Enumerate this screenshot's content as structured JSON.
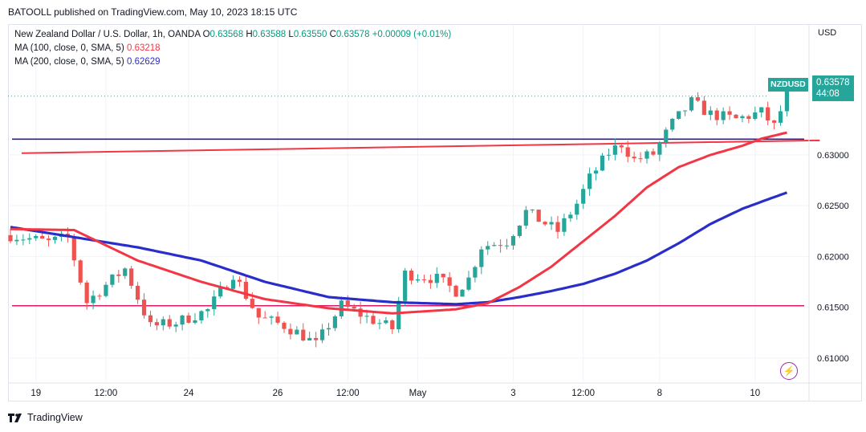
{
  "header": {
    "publisher": "BATOOLL published on TradingView.com, May 10, 2023 18:15 UTC"
  },
  "legend": {
    "symbol": "New Zealand Dollar / U.S. Dollar, 1h, OANDA",
    "open_label": "O",
    "open": "0.63568",
    "high_label": "H",
    "high": "0.63588",
    "low_label": "L",
    "low": "0.63550",
    "close_label": "C",
    "close": "0.63578",
    "change": "+0.00009 (+0.01%)",
    "ma100_label": "MA (100, close, 0, SMA, 5)",
    "ma100_value": "0.63218",
    "ma200_label": "MA (200, close, 0, SMA, 5)",
    "ma200_value": "0.62629"
  },
  "axis": {
    "currency": "USD"
  },
  "price_tag": {
    "symbol": "NZDUSD",
    "price": "0.63578",
    "countdown": "44:08"
  },
  "footer": {
    "brand": "TradingView"
  },
  "colors": {
    "up": "#26a69a",
    "down": "#ef5350",
    "ma100": "#f23645",
    "ma200": "#2a2ec9",
    "hline": "#d81b60",
    "resistance": "#311b92"
  },
  "chart_data": {
    "type": "candlestick",
    "ylim": [
      0.6077,
      0.6428
    ],
    "yticks": [
      0.61,
      0.615,
      0.62,
      0.625,
      0.63
    ],
    "ytick_labels": [
      "0.61000",
      "0.61500",
      "0.62000",
      "0.62500",
      "0.63000"
    ],
    "xticks": [
      {
        "i": 4,
        "label": "19"
      },
      {
        "i": 15,
        "label": "12:00"
      },
      {
        "i": 28,
        "label": "24"
      },
      {
        "i": 42,
        "label": "26"
      },
      {
        "i": 53,
        "label": "12:00"
      },
      {
        "i": 64,
        "label": "May"
      },
      {
        "i": 79,
        "label": "3"
      },
      {
        "i": 90,
        "label": "12:00"
      },
      {
        "i": 102,
        "label": "8"
      },
      {
        "i": 117,
        "label": "10"
      }
    ],
    "candle_count": 123,
    "close_path": [
      [
        0,
        0.6221
      ],
      [
        6,
        0.6214
      ],
      [
        9,
        0.6219
      ],
      [
        12,
        0.6155
      ],
      [
        15,
        0.6172
      ],
      [
        18,
        0.6188
      ],
      [
        22,
        0.6131
      ],
      [
        26,
        0.6135
      ],
      [
        31,
        0.6147
      ],
      [
        35,
        0.6183
      ],
      [
        39,
        0.614
      ],
      [
        43,
        0.6132
      ],
      [
        46,
        0.6122
      ],
      [
        48,
        0.6113
      ],
      [
        52,
        0.6152
      ],
      [
        56,
        0.614
      ],
      [
        60,
        0.6129
      ],
      [
        62,
        0.6183
      ],
      [
        67,
        0.6178
      ],
      [
        70,
        0.6166
      ],
      [
        72,
        0.6178
      ],
      [
        74,
        0.621
      ],
      [
        78,
        0.6215
      ],
      [
        81,
        0.6244
      ],
      [
        86,
        0.6225
      ],
      [
        89,
        0.6252
      ],
      [
        91,
        0.6277
      ],
      [
        94,
        0.6302
      ],
      [
        96,
        0.6311
      ],
      [
        98,
        0.6295
      ],
      [
        101,
        0.6301
      ],
      [
        104,
        0.6331
      ],
      [
        107,
        0.6352
      ],
      [
        110,
        0.634
      ],
      [
        114,
        0.6335
      ],
      [
        118,
        0.6342
      ],
      [
        120,
        0.6328
      ],
      [
        122,
        0.6358
      ]
    ],
    "ma100": [
      [
        0,
        0.6227
      ],
      [
        10,
        0.6226
      ],
      [
        20,
        0.6196
      ],
      [
        30,
        0.6175
      ],
      [
        40,
        0.6158
      ],
      [
        50,
        0.6149
      ],
      [
        60,
        0.6144
      ],
      [
        70,
        0.6148
      ],
      [
        75,
        0.6154
      ],
      [
        80,
        0.617
      ],
      [
        85,
        0.619
      ],
      [
        90,
        0.6215
      ],
      [
        95,
        0.624
      ],
      [
        100,
        0.6268
      ],
      [
        105,
        0.6288
      ],
      [
        110,
        0.63
      ],
      [
        115,
        0.6309
      ],
      [
        118,
        0.6316
      ],
      [
        122,
        0.6322
      ]
    ],
    "ma200": [
      [
        0,
        0.6229
      ],
      [
        5,
        0.6224
      ],
      [
        10,
        0.6219
      ],
      [
        20,
        0.6209
      ],
      [
        30,
        0.6196
      ],
      [
        40,
        0.6175
      ],
      [
        50,
        0.616
      ],
      [
        60,
        0.6155
      ],
      [
        70,
        0.6153
      ],
      [
        75,
        0.6155
      ],
      [
        80,
        0.616
      ],
      [
        85,
        0.6166
      ],
      [
        90,
        0.6173
      ],
      [
        95,
        0.6183
      ],
      [
        100,
        0.6196
      ],
      [
        105,
        0.6213
      ],
      [
        110,
        0.6232
      ],
      [
        115,
        0.6247
      ],
      [
        122,
        0.6263
      ]
    ],
    "hlines": [
      {
        "price": 0.61515,
        "color": "#d81b60"
      },
      {
        "price": 0.63155,
        "color": "#311b92"
      }
    ],
    "trendline": {
      "from": [
        0,
        0.63017
      ],
      "to": [
        124,
        0.63143
      ],
      "color": "#f23645"
    },
    "last_price": 0.63578
  }
}
